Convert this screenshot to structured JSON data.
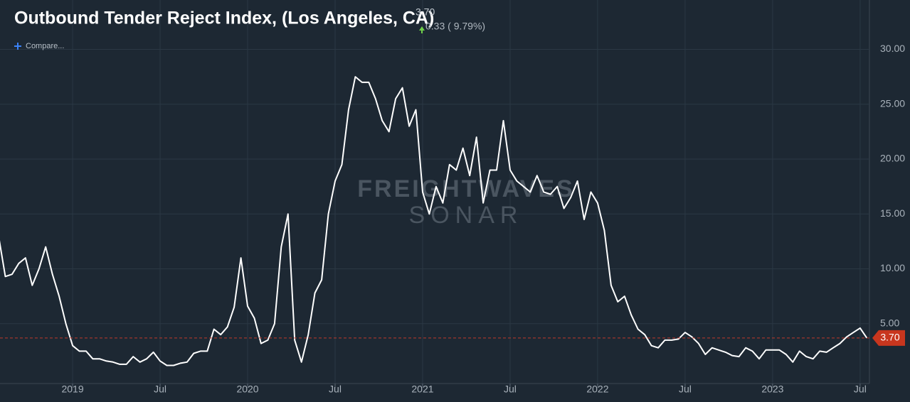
{
  "chart_data": {
    "type": "line",
    "title": "Outbound Tender Reject Index, (Los Angeles, CA)",
    "current": {
      "value": 3.7,
      "label": "3.70"
    },
    "change": "0.33 ( 9.79%)",
    "compare": "Compare...",
    "watermark": [
      "FREIGHTWAVES",
      "SONAR"
    ],
    "categories": [
      null,
      null,
      null,
      null,
      null,
      null,
      null,
      null,
      null,
      null,
      null,
      "2019",
      null,
      null,
      null,
      null,
      null,
      null,
      null,
      null,
      null,
      null,
      null,
      null,
      "Jul",
      null,
      null,
      null,
      null,
      null,
      null,
      null,
      null,
      null,
      null,
      null,
      null,
      "2020",
      null,
      null,
      null,
      null,
      null,
      null,
      null,
      null,
      null,
      null,
      null,
      null,
      "Jul",
      null,
      null,
      null,
      null,
      null,
      null,
      null,
      null,
      null,
      null,
      null,
      null,
      "2021",
      null,
      null,
      null,
      null,
      null,
      null,
      null,
      null,
      null,
      null,
      null,
      null,
      "Jul",
      null,
      null,
      null,
      null,
      null,
      null,
      null,
      null,
      null,
      null,
      null,
      null,
      "2022",
      null,
      null,
      null,
      null,
      null,
      null,
      null,
      null,
      null,
      null,
      null,
      null,
      "Jul",
      null,
      null,
      null,
      null,
      null,
      null,
      null,
      null,
      null,
      null,
      null,
      null,
      "2023",
      null,
      null,
      null,
      null,
      null,
      null,
      null,
      null,
      null,
      null,
      null,
      null,
      "Jul",
      null
    ],
    "series": [
      {
        "name": "Outbound Tender Reject Index",
        "color": "#ffffff",
        "values": [
          13,
          9.3,
          9.5,
          10.5,
          11,
          8.5,
          10,
          12,
          9.5,
          7.5,
          5,
          3,
          2.5,
          2.5,
          1.8,
          1.8,
          1.6,
          1.5,
          1.3,
          1.3,
          2.0,
          1.5,
          1.8,
          2.4,
          1.6,
          1.2,
          1.2,
          1.4,
          1.5,
          2.3,
          2.5,
          2.5,
          4.5,
          4,
          4.7,
          6.5,
          11,
          6.6,
          5.5,
          3.2,
          3.5,
          5,
          12,
          15,
          3.5,
          1.5,
          4,
          7.8,
          9,
          15,
          18,
          19.5,
          24.5,
          27.5,
          27,
          27,
          25.5,
          23.5,
          22.5,
          25.5,
          26.5,
          23,
          24.5,
          17,
          15,
          17.5,
          16,
          19.5,
          19,
          21,
          18.5,
          22,
          16,
          19,
          19,
          23.5,
          19,
          18,
          17.5,
          17,
          18.5,
          17,
          16.8,
          17.5,
          15.5,
          16.5,
          18,
          14.5,
          17,
          16,
          13.5,
          8.5,
          7,
          7.5,
          5.8,
          4.5,
          4,
          3,
          2.8,
          3.5,
          3.5,
          3.6,
          4.2,
          3.8,
          3.2,
          2.2,
          2.8,
          2.6,
          2.4,
          2.1,
          2.0,
          2.8,
          2.5,
          1.8,
          2.6,
          2.6,
          2.6,
          2.2,
          1.5,
          2.5,
          2.0,
          1.8,
          2.5,
          2.4,
          2.8,
          3.2,
          3.8,
          4.2,
          4.6,
          3.7
        ]
      }
    ],
    "ylim": [
      0,
      34.5
    ],
    "yticks": [
      {
        "value": 5,
        "label": "5.00"
      },
      {
        "value": 10,
        "label": "10.00"
      },
      {
        "value": 15,
        "label": "15.00"
      },
      {
        "value": 20,
        "label": "20.00"
      },
      {
        "value": 25,
        "label": "25.00"
      },
      {
        "value": 30,
        "label": "30.00"
      }
    ],
    "grid": true
  }
}
